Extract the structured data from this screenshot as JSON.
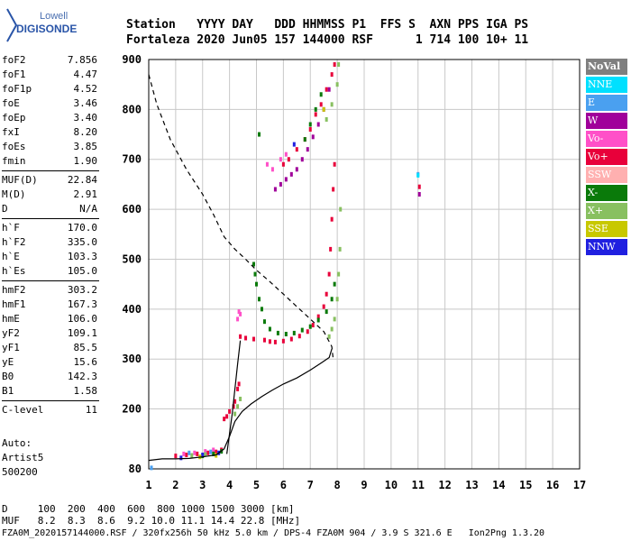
{
  "logo": {
    "line1": "Lowell",
    "line2": "DIGISONDE"
  },
  "header": {
    "row1": "Station   YYYY DAY   DDD HHMMSS P1  FFS S  AXN PPS IGA PS",
    "row2": "Fortaleza 2020 Jun05 157 144000 RSF      1 714 100 10+ 11"
  },
  "params": [
    {
      "k": "foF2",
      "v": "7.856"
    },
    {
      "k": "foF1",
      "v": "4.47"
    },
    {
      "k": "foF1p",
      "v": "4.52"
    },
    {
      "k": "foE",
      "v": "3.46"
    },
    {
      "k": "foEp",
      "v": "3.40"
    },
    {
      "k": "fxI",
      "v": "8.20"
    },
    {
      "k": "foEs",
      "v": "3.85"
    },
    {
      "k": "fmin",
      "v": "1.90"
    },
    {
      "k": "MUF(D)",
      "v": "22.84"
    },
    {
      "k": "M(D)",
      "v": "2.91"
    },
    {
      "k": "D",
      "v": "N/A"
    },
    {
      "k": "h`F",
      "v": "170.0"
    },
    {
      "k": "h`F2",
      "v": "335.0"
    },
    {
      "k": "h`E",
      "v": "103.3"
    },
    {
      "k": "h`Es",
      "v": "105.0"
    },
    {
      "k": "hmF2",
      "v": "303.2"
    },
    {
      "k": "hmF1",
      "v": "167.3"
    },
    {
      "k": "hmE",
      "v": "106.0"
    },
    {
      "k": "yF2",
      "v": "109.1"
    },
    {
      "k": "yF1",
      "v": "85.5"
    },
    {
      "k": "yE",
      "v": "15.6"
    },
    {
      "k": "B0",
      "v": "142.3"
    },
    {
      "k": "B1",
      "v": "1.58"
    },
    {
      "k": "C-level",
      "v": "11"
    }
  ],
  "auto": {
    "line1": "Auto:",
    "line2": "Artist5",
    "line3": "500200"
  },
  "legend": [
    {
      "label": "NoVal",
      "color": "#7f7f7f"
    },
    {
      "label": "NNE",
      "color": "#00e0ff"
    },
    {
      "label": "E",
      "color": "#4aa0f0"
    },
    {
      "label": "W",
      "color": "#a0009a"
    },
    {
      "label": "Vo-",
      "color": "#ff50c8"
    },
    {
      "label": "Vo+",
      "color": "#e8003a"
    },
    {
      "label": "SSW",
      "color": "#ffb0b0"
    },
    {
      "label": "X-",
      "color": "#0a7a0a"
    },
    {
      "label": "X+",
      "color": "#88c060"
    },
    {
      "label": "SSE",
      "color": "#c8c800"
    },
    {
      "label": "NNW",
      "color": "#2020e0"
    }
  ],
  "bottom": {
    "d_row": "D     100  200  400  600  800 1000 1500 3000 [km]",
    "muf_row": "MUF   8.2  8.3  8.6  9.2 10.0 11.1 14.4 22.8 [MHz]",
    "footer": "FZA0M_2020157144000.RSF / 320fx256h 50 kHz 5.0 km / DPS-4 FZA0M 904 / 3.9 S 321.6 E   Ion2Png 1.3.20"
  },
  "chart_data": {
    "type": "scatter",
    "xlim": [
      1,
      17
    ],
    "ylim": [
      80,
      900
    ],
    "x_ticks": [
      1,
      2,
      3,
      4,
      5,
      6,
      7,
      8,
      9,
      10,
      11,
      12,
      13,
      14,
      15,
      16,
      17
    ],
    "y_ticks": [
      80,
      200,
      300,
      400,
      500,
      600,
      700,
      800,
      900
    ],
    "grid": true,
    "profile_dashed": [
      [
        1.0,
        870
      ],
      [
        1.3,
        810
      ],
      [
        1.8,
        740
      ],
      [
        2.4,
        680
      ],
      [
        3.0,
        630
      ],
      [
        3.4,
        590
      ],
      [
        3.8,
        545
      ],
      [
        4.2,
        520
      ],
      [
        4.6,
        500
      ],
      [
        5.0,
        478
      ],
      [
        5.5,
        455
      ],
      [
        6.0,
        430
      ],
      [
        6.5,
        405
      ],
      [
        7.0,
        380
      ],
      [
        7.5,
        355
      ],
      [
        7.8,
        325
      ],
      [
        7.85,
        300
      ]
    ],
    "trace_solid": [
      [
        1.0,
        97
      ],
      [
        1.5,
        100
      ],
      [
        2.0,
        100
      ],
      [
        2.5,
        101
      ],
      [
        3.0,
        104
      ],
      [
        3.5,
        108
      ],
      [
        3.8,
        120
      ],
      [
        4.0,
        145
      ],
      [
        4.2,
        175
      ],
      [
        4.47,
        195
      ],
      [
        4.8,
        210
      ],
      [
        5.2,
        225
      ],
      [
        5.6,
        238
      ],
      [
        6.0,
        250
      ],
      [
        6.5,
        262
      ],
      [
        7.0,
        278
      ],
      [
        7.4,
        292
      ],
      [
        7.7,
        303
      ],
      [
        7.8,
        320
      ]
    ],
    "trace_es": [
      [
        3.9,
        110
      ],
      [
        4.0,
        150
      ],
      [
        4.1,
        190
      ],
      [
        4.2,
        240
      ],
      [
        4.3,
        290
      ],
      [
        4.4,
        337
      ]
    ],
    "echoes": [
      {
        "mode": "Vo+",
        "color": "#e8003a",
        "points": [
          [
            5.3,
            338
          ],
          [
            5.5,
            335
          ],
          [
            5.7,
            334
          ],
          [
            6.0,
            336
          ],
          [
            6.3,
            340
          ],
          [
            6.6,
            346
          ],
          [
            6.9,
            355
          ],
          [
            7.1,
            368
          ],
          [
            7.3,
            385
          ],
          [
            7.5,
            405
          ],
          [
            7.6,
            430
          ],
          [
            7.7,
            470
          ],
          [
            7.75,
            520
          ],
          [
            7.8,
            580
          ],
          [
            7.85,
            640
          ],
          [
            7.9,
            690
          ],
          [
            4.4,
            345
          ],
          [
            4.6,
            342
          ],
          [
            4.9,
            340
          ],
          [
            3.8,
            180
          ],
          [
            3.9,
            185
          ],
          [
            4.0,
            195
          ],
          [
            4.15,
            205
          ],
          [
            4.2,
            215
          ],
          [
            4.3,
            240
          ],
          [
            4.35,
            250
          ],
          [
            2.0,
            106
          ],
          [
            2.4,
            108
          ],
          [
            2.8,
            110
          ],
          [
            3.2,
            112
          ],
          [
            3.5,
            114
          ],
          [
            3.7,
            118
          ],
          [
            6.0,
            690
          ],
          [
            6.2,
            700
          ],
          [
            6.5,
            720
          ],
          [
            6.8,
            740
          ],
          [
            7.0,
            760
          ],
          [
            7.2,
            790
          ],
          [
            7.4,
            810
          ],
          [
            7.6,
            840
          ],
          [
            7.8,
            870
          ],
          [
            7.9,
            890
          ],
          [
            11.05,
            645
          ]
        ]
      },
      {
        "mode": "Vo-",
        "color": "#ff50c8",
        "points": [
          [
            4.3,
            380
          ],
          [
            4.35,
            395
          ],
          [
            4.4,
            390
          ],
          [
            5.4,
            690
          ],
          [
            5.6,
            680
          ],
          [
            5.9,
            700
          ],
          [
            6.1,
            710
          ],
          [
            2.3,
            110
          ],
          [
            2.7,
            112
          ],
          [
            3.1,
            115
          ],
          [
            3.4,
            118
          ]
        ]
      },
      {
        "mode": "W",
        "color": "#a0009a",
        "points": [
          [
            5.7,
            640
          ],
          [
            5.9,
            650
          ],
          [
            6.1,
            660
          ],
          [
            6.3,
            670
          ],
          [
            6.5,
            680
          ],
          [
            6.7,
            700
          ],
          [
            6.9,
            720
          ],
          [
            7.1,
            745
          ],
          [
            7.3,
            770
          ],
          [
            7.5,
            800
          ],
          [
            7.7,
            840
          ],
          [
            11.05,
            630
          ]
        ]
      },
      {
        "mode": "X-",
        "color": "#0a7a0a",
        "points": [
          [
            4.9,
            490
          ],
          [
            4.95,
            470
          ],
          [
            5.0,
            450
          ],
          [
            5.1,
            420
          ],
          [
            5.2,
            400
          ],
          [
            5.3,
            375
          ],
          [
            5.5,
            360
          ],
          [
            5.8,
            352
          ],
          [
            6.1,
            350
          ],
          [
            6.4,
            352
          ],
          [
            6.7,
            358
          ],
          [
            7.0,
            365
          ],
          [
            7.3,
            378
          ],
          [
            7.6,
            395
          ],
          [
            7.8,
            420
          ],
          [
            7.9,
            450
          ],
          [
            6.8,
            740
          ],
          [
            7.0,
            770
          ],
          [
            7.2,
            800
          ],
          [
            7.4,
            830
          ],
          [
            5.1,
            750
          ],
          [
            3.0,
            106
          ],
          [
            3.4,
            110
          ],
          [
            3.7,
            115
          ]
        ]
      },
      {
        "mode": "X+",
        "color": "#88c060",
        "points": [
          [
            7.7,
            345
          ],
          [
            7.8,
            360
          ],
          [
            7.9,
            380
          ],
          [
            8.0,
            420
          ],
          [
            8.05,
            470
          ],
          [
            8.1,
            520
          ],
          [
            8.12,
            600
          ],
          [
            4.2,
            190
          ],
          [
            4.3,
            205
          ],
          [
            4.4,
            220
          ],
          [
            7.6,
            780
          ],
          [
            7.8,
            810
          ],
          [
            8.0,
            850
          ],
          [
            8.05,
            890
          ],
          [
            2.6,
            107
          ],
          [
            3.1,
            109
          ]
        ]
      },
      {
        "mode": "E",
        "color": "#4aa0f0",
        "points": [
          [
            1.1,
            82
          ],
          [
            2.5,
            112
          ],
          [
            3.3,
            114
          ],
          [
            11.0,
            670
          ]
        ]
      },
      {
        "mode": "NNW",
        "color": "#2020e0",
        "points": [
          [
            2.2,
            102
          ],
          [
            3.0,
            108
          ],
          [
            3.6,
            112
          ],
          [
            6.4,
            730
          ]
        ]
      },
      {
        "mode": "SSE",
        "color": "#c8c800",
        "points": [
          [
            2.9,
            104
          ],
          [
            3.5,
            107
          ],
          [
            7.5,
            800
          ]
        ]
      },
      {
        "mode": "NNE",
        "color": "#00e0ff",
        "points": [
          [
            11.0,
            668
          ]
        ]
      }
    ]
  }
}
